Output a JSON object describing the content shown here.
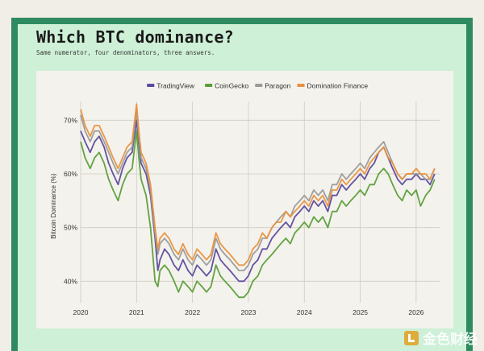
{
  "header": {
    "title": "Which BTC dominance?",
    "subtitle": "Same numerator, four denominators, three answers."
  },
  "watermark": "金色财经",
  "chart_data": {
    "type": "line",
    "ylabel": "Bitcoin Dominance (%)",
    "xlabel": "",
    "xlim": [
      2020.0,
      2026.42
    ],
    "ylim": [
      36,
      72
    ],
    "x_ticks": [
      {
        "value": 2020,
        "label": "2020"
      },
      {
        "value": 2021,
        "label": "2021"
      },
      {
        "value": 2022,
        "label": "2022"
      },
      {
        "value": 2023,
        "label": "2023"
      },
      {
        "value": 2024,
        "label": "2024"
      },
      {
        "value": 2025,
        "label": "2025"
      },
      {
        "value": 2026,
        "label": "2026"
      }
    ],
    "y_ticks": [
      {
        "value": 40,
        "label": "40%"
      },
      {
        "value": 50,
        "label": "50%"
      },
      {
        "value": 60,
        "label": "60%"
      },
      {
        "value": 70,
        "label": "70%"
      }
    ],
    "grid": true,
    "legend_position": "top-center",
    "x": [
      2020.0,
      2020.08,
      2020.17,
      2020.25,
      2020.33,
      2020.42,
      2020.5,
      2020.58,
      2020.67,
      2020.75,
      2020.83,
      2020.92,
      2021.0,
      2021.04,
      2021.08,
      2021.17,
      2021.25,
      2021.33,
      2021.38,
      2021.42,
      2021.5,
      2021.58,
      2021.67,
      2021.75,
      2021.83,
      2021.92,
      2022.0,
      2022.08,
      2022.17,
      2022.25,
      2022.33,
      2022.42,
      2022.5,
      2022.58,
      2022.67,
      2022.75,
      2022.83,
      2022.92,
      2023.0,
      2023.08,
      2023.17,
      2023.25,
      2023.33,
      2023.42,
      2023.5,
      2023.58,
      2023.67,
      2023.75,
      2023.83,
      2023.92,
      2024.0,
      2024.08,
      2024.17,
      2024.25,
      2024.33,
      2024.42,
      2024.5,
      2024.58,
      2024.67,
      2024.75,
      2024.83,
      2024.92,
      2025.0,
      2025.08,
      2025.17,
      2025.25,
      2025.33,
      2025.42,
      2025.5,
      2025.58,
      2025.67,
      2025.75,
      2025.83,
      2025.92,
      2026.0,
      2026.08,
      2026.17,
      2026.25,
      2026.33
    ],
    "series": [
      {
        "name": "TradingView",
        "color": "#5b4a9e",
        "values": [
          68,
          66,
          64,
          66,
          67,
          65,
          62,
          60,
          58,
          61,
          63,
          64,
          70,
          66,
          62,
          60,
          56,
          48,
          42,
          44,
          46,
          45,
          43,
          42,
          44,
          42,
          41,
          43,
          42,
          41,
          42,
          46,
          44,
          43,
          42,
          41,
          40,
          40,
          41,
          43,
          44,
          46,
          46,
          48,
          49,
          50,
          51,
          50,
          52,
          53,
          54,
          53,
          55,
          54,
          55,
          53,
          56,
          56,
          58,
          57,
          58,
          59,
          60,
          59,
          61,
          62,
          64,
          65,
          63,
          61,
          59,
          58,
          59,
          59,
          60,
          59,
          59,
          58,
          60
        ]
      },
      {
        "name": "CoinGecko",
        "color": "#5a9e3a",
        "values": [
          66,
          63,
          61,
          63,
          64,
          62,
          59,
          57,
          55,
          58,
          60,
          61,
          68,
          63,
          59,
          56,
          50,
          40,
          39,
          42,
          43,
          42,
          40,
          38,
          40,
          39,
          38,
          40,
          39,
          38,
          39,
          43,
          41,
          40,
          39,
          38,
          37,
          37,
          38,
          40,
          41,
          43,
          44,
          45,
          46,
          47,
          48,
          47,
          49,
          50,
          51,
          50,
          52,
          51,
          52,
          50,
          53,
          53,
          55,
          54,
          55,
          56,
          57,
          56,
          58,
          58,
          60,
          61,
          60,
          58,
          56,
          55,
          57,
          56,
          57,
          54,
          56,
          57,
          59
        ]
      },
      {
        "name": "Paragon",
        "color": "#9a9a9a",
        "values": [
          71,
          68,
          66,
          68,
          68,
          66,
          64,
          62,
          60,
          62,
          64,
          65,
          72,
          67,
          63,
          61,
          57,
          49,
          45,
          47,
          48,
          47,
          45,
          44,
          46,
          44,
          43,
          45,
          44,
          43,
          44,
          48,
          46,
          45,
          44,
          43,
          42,
          42,
          43,
          45,
          46,
          48,
          48,
          50,
          51,
          52,
          53,
          52,
          54,
          55,
          56,
          55,
          57,
          56,
          57,
          55,
          58,
          58,
          60,
          59,
          60,
          61,
          62,
          61,
          63,
          64,
          65,
          66,
          64,
          62,
          60,
          59,
          60,
          60,
          60,
          60,
          59,
          59,
          61
        ]
      },
      {
        "name": "Domination Finance",
        "color": "#e8913e",
        "values": [
          72,
          69,
          67,
          69,
          69,
          67,
          65,
          63,
          61,
          63,
          65,
          66,
          73,
          68,
          64,
          62,
          58,
          50,
          46,
          48,
          49,
          48,
          46,
          45,
          47,
          45,
          44,
          46,
          45,
          44,
          45,
          49,
          47,
          46,
          45,
          44,
          43,
          43,
          44,
          46,
          47,
          49,
          48,
          50,
          51,
          51,
          53,
          52,
          53,
          54,
          55,
          54,
          56,
          55,
          56,
          54,
          57,
          57,
          59,
          58,
          59,
          60,
          61,
          60,
          62,
          63,
          64,
          65,
          63,
          62,
          60,
          59,
          60,
          60,
          61,
          60,
          60,
          59,
          61
        ]
      }
    ]
  }
}
